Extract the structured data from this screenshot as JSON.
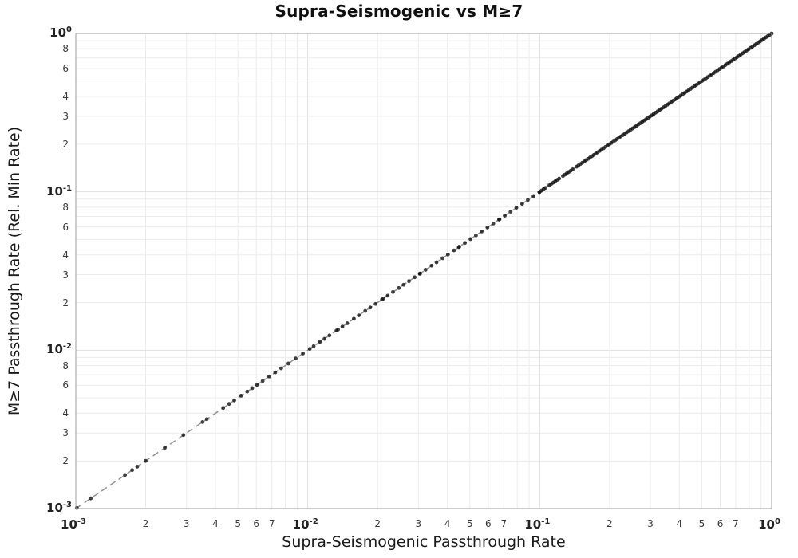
{
  "chart_data": {
    "type": "scatter",
    "title": "Supra-Seismogenic vs M≥7",
    "xlabel": "Supra-Seismogenic Passthrough Rate",
    "ylabel": "M≥7 Passthrough Rate (Rel. Min Rate)",
    "xscale": "log",
    "yscale": "log",
    "xlim": [
      0.001,
      1.0
    ],
    "ylim": [
      0.001,
      1.0
    ],
    "grid": "on",
    "legend": "none",
    "x_axis": {
      "major_exponents": [
        -3,
        -2,
        -1,
        0
      ],
      "minor_labels": [
        2,
        3,
        4,
        5,
        6,
        7
      ],
      "minor_gridline_digits": [
        2,
        3,
        4,
        5,
        6,
        7,
        8,
        9
      ]
    },
    "y_axis": {
      "major_exponents": [
        0,
        -1,
        -2,
        -3
      ],
      "minor_labels": [
        8,
        6,
        4,
        3,
        2
      ],
      "minor_gridline_digits": [
        2,
        3,
        4,
        5,
        6,
        7,
        8,
        9
      ]
    },
    "reference_line": {
      "name": "1:1 identity line",
      "style": "dashed",
      "color": "#8f8f8f",
      "width": 1.5,
      "dash": "8 5",
      "from": 0.001,
      "to": 1.0
    },
    "marker": {
      "shape": "circle",
      "radius": 2.4,
      "color": "#111111",
      "opacity": 0.8
    },
    "style": {
      "grid_minor_color": "#ececec",
      "grid_major_color": "#e0e0e0",
      "axis_border_color": "#9c9c9c",
      "background": "#ffffff"
    },
    "note": "All data points lie on the y = x diagonal; values below are the shared x/y coordinate of each point.",
    "points": [
      0.00101,
      0.00116,
      0.00163,
      0.00175,
      0.00184,
      0.002,
      0.00242,
      0.00291,
      0.00352,
      0.00367,
      0.00432,
      0.00458,
      0.00482,
      0.00516,
      0.00548,
      0.00576,
      0.00604,
      0.00639,
      0.00682,
      0.00724,
      0.00768,
      0.00825,
      0.00887,
      0.00953,
      0.0102,
      0.0106,
      0.0113,
      0.0118,
      0.0124,
      0.0133,
      0.0135,
      0.0141,
      0.0148,
      0.0158,
      0.0166,
      0.0177,
      0.0186,
      0.0196,
      0.0209,
      0.0212,
      0.0221,
      0.0233,
      0.0247,
      0.0259,
      0.0273,
      0.0289,
      0.0304,
      0.0305,
      0.0322,
      0.0342,
      0.0359,
      0.0381,
      0.0402,
      0.0427,
      0.0448,
      0.045,
      0.0476,
      0.0503,
      0.0531,
      0.0562,
      0.0595,
      0.0631,
      0.0668,
      0.0671,
      0.0707,
      0.0749,
      0.0793,
      0.084,
      0.0889,
      0.0941,
      0.0996,
      0.1,
      0.1019,
      0.1039,
      0.1059,
      0.1101,
      0.1122,
      0.1144,
      0.1166,
      0.1189,
      0.1212,
      0.1259,
      0.1284,
      0.1309,
      0.1334,
      0.136,
      0.1387,
      0.1441,
      0.1468,
      0.1497,
      0.1526,
      0.1556,
      0.1585,
      0.1616,
      0.1648,
      0.1679,
      0.1712,
      0.1746,
      0.1778,
      0.1813,
      0.1848,
      0.1884,
      0.1921,
      0.1957,
      0.1995,
      0.2034,
      0.2073,
      0.2113,
      0.2154,
      0.2196,
      0.2239,
      0.2282,
      0.2326,
      0.2371,
      0.2417,
      0.2464,
      0.2512,
      0.2561,
      0.261,
      0.2661,
      0.2712,
      0.2765,
      0.2818,
      0.2873,
      0.2929,
      0.2985,
      0.3043,
      0.3102,
      0.3162,
      0.3224,
      0.3286,
      0.335,
      0.3415,
      0.3481,
      0.3548,
      0.3617,
      0.3687,
      0.3758,
      0.3831,
      0.3905,
      0.3981,
      0.4058,
      0.4137,
      0.4217,
      0.4299,
      0.4382,
      0.4467,
      0.4553,
      0.4642,
      0.4732,
      0.4823,
      0.4917,
      0.5012,
      0.5109,
      0.5208,
      0.5309,
      0.5412,
      0.5517,
      0.5623,
      0.5733,
      0.5843,
      0.5957,
      0.6072,
      0.619,
      0.631,
      0.6432,
      0.6557,
      0.6684,
      0.6813,
      0.6945,
      0.708,
      0.7217,
      0.7356,
      0.7499,
      0.7644,
      0.7792,
      0.7943,
      0.8097,
      0.8254,
      0.8414,
      0.8577,
      0.8743,
      0.8913,
      0.9086,
      0.9261,
      0.9441,
      0.9624,
      0.9811,
      1.0
    ]
  }
}
